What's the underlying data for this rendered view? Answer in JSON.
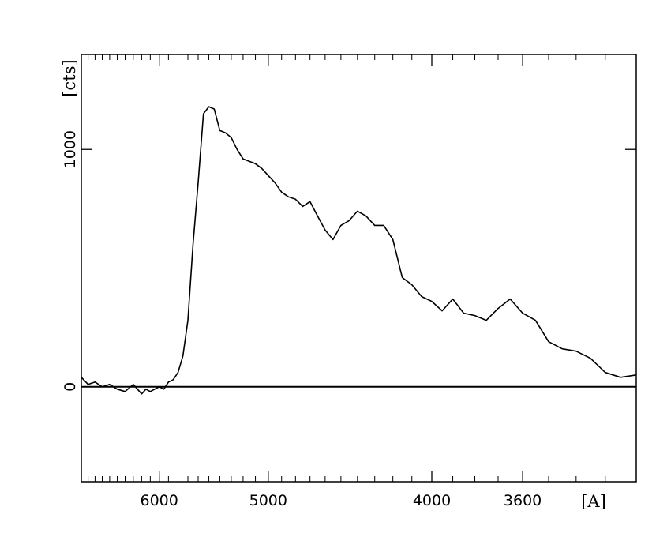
{
  "chart_data": {
    "type": "line",
    "title": "",
    "xlabel": "[A]",
    "ylabel": "[cts]",
    "x_scale": "reciprocal",
    "x_range": [
      7000,
      3200
    ],
    "ylim": [
      -400,
      1400
    ],
    "x_ticks": [
      {
        "value": 6000,
        "label": "6000"
      },
      {
        "value": 5000,
        "label": "5000"
      },
      {
        "value": 4000,
        "label": "4000"
      },
      {
        "value": 3600,
        "label": "3600"
      }
    ],
    "y_ticks": [
      {
        "value": 0,
        "label": "0"
      },
      {
        "value": 1000,
        "label": "1000"
      }
    ],
    "baseline": 0,
    "grid": false,
    "series": [
      {
        "x": [
          7000,
          6900,
          6800,
          6700,
          6600,
          6500,
          6400,
          6300,
          6200,
          6150,
          6100,
          6050,
          6000,
          5950,
          5900,
          5850,
          5800,
          5750,
          5700,
          5650,
          5600,
          5550,
          5500,
          5450,
          5400,
          5350,
          5300,
          5250,
          5200,
          5150,
          5100,
          5050,
          5000,
          4950,
          4900,
          4850,
          4800,
          4750,
          4700,
          4650,
          4600,
          4550,
          4500,
          4450,
          4400,
          4350,
          4300,
          4250,
          4200,
          4150,
          4100,
          4050,
          4000,
          3950,
          3900,
          3850,
          3800,
          3750,
          3700,
          3650,
          3600,
          3550,
          3500,
          3450,
          3400,
          3350,
          3300,
          3250,
          3200
        ],
        "y": [
          40,
          10,
          20,
          0,
          10,
          -10,
          -20,
          10,
          -30,
          -10,
          -20,
          -10,
          0,
          -10,
          20,
          30,
          60,
          130,
          280,
          600,
          860,
          1150,
          1180,
          1170,
          1080,
          1070,
          1050,
          1000,
          960,
          950,
          940,
          920,
          890,
          860,
          820,
          800,
          790,
          760,
          780,
          720,
          660,
          620,
          680,
          700,
          740,
          720,
          680,
          680,
          620,
          460,
          430,
          380,
          360,
          320,
          370,
          310,
          300,
          280,
          330,
          370,
          310,
          280,
          190,
          160,
          150,
          120,
          60,
          40,
          50
        ]
      }
    ]
  }
}
